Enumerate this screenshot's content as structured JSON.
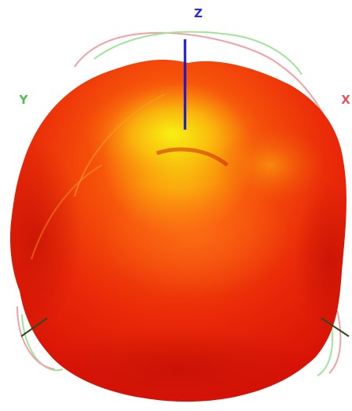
{
  "axes": {
    "z": {
      "label": "Z",
      "color": "#2d2dd6"
    },
    "y": {
      "label": "Y",
      "color": "#4fbf54"
    },
    "x": {
      "label": "X",
      "color": "#e8505a"
    }
  },
  "colors": {
    "background": "#ffffff",
    "surface_low": "#e21208",
    "surface_mid": "#ff5a0a",
    "surface_high": "#f8f20c",
    "z_axis_line": "#1414c8",
    "cut_red": "#f2a0a6",
    "cut_green": "#9ee59a"
  }
}
